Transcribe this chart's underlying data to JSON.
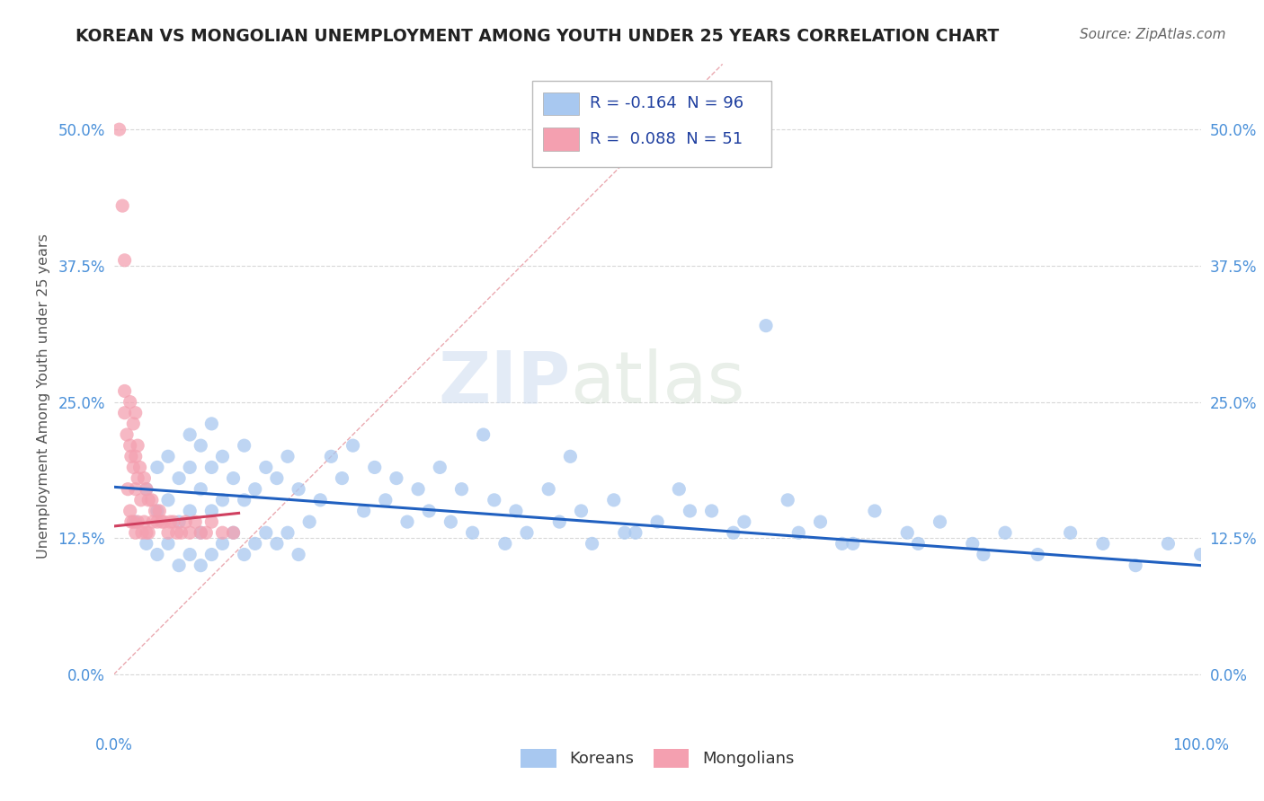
{
  "title": "KOREAN VS MONGOLIAN UNEMPLOYMENT AMONG YOUTH UNDER 25 YEARS CORRELATION CHART",
  "source": "Source: ZipAtlas.com",
  "ylabel": "Unemployment Among Youth under 25 years",
  "ytick_labels": [
    "0.0%",
    "12.5%",
    "25.0%",
    "37.5%",
    "50.0%"
  ],
  "ytick_values": [
    0.0,
    0.125,
    0.25,
    0.375,
    0.5
  ],
  "xlim": [
    0.0,
    1.0
  ],
  "ylim": [
    -0.05,
    0.56
  ],
  "korean_R": -0.164,
  "korean_N": 96,
  "mongolian_R": 0.088,
  "mongolian_N": 51,
  "korean_color": "#a8c8f0",
  "mongolian_color": "#f4a0b0",
  "korean_line_color": "#2060c0",
  "mongolian_line_color": "#d04060",
  "diag_color": "#e8a0a8",
  "background_color": "#ffffff",
  "title_color": "#222222",
  "title_fontsize": 13.5,
  "source_fontsize": 11,
  "tick_color": "#4a90d9",
  "legend_color": "#2040a0",
  "watermark_zip": "ZIP",
  "watermark_atlas": "atlas",
  "korean_scatter_x": [
    0.02,
    0.03,
    0.03,
    0.04,
    0.04,
    0.04,
    0.05,
    0.05,
    0.05,
    0.06,
    0.06,
    0.06,
    0.07,
    0.07,
    0.07,
    0.07,
    0.08,
    0.08,
    0.08,
    0.08,
    0.09,
    0.09,
    0.09,
    0.09,
    0.1,
    0.1,
    0.1,
    0.11,
    0.11,
    0.12,
    0.12,
    0.12,
    0.13,
    0.13,
    0.14,
    0.14,
    0.15,
    0.15,
    0.16,
    0.16,
    0.17,
    0.17,
    0.18,
    0.19,
    0.2,
    0.21,
    0.22,
    0.23,
    0.24,
    0.25,
    0.26,
    0.27,
    0.28,
    0.29,
    0.3,
    0.31,
    0.32,
    0.33,
    0.35,
    0.37,
    0.38,
    0.4,
    0.41,
    0.43,
    0.44,
    0.46,
    0.48,
    0.5,
    0.52,
    0.55,
    0.57,
    0.6,
    0.62,
    0.65,
    0.67,
    0.7,
    0.73,
    0.76,
    0.79,
    0.82,
    0.85,
    0.88,
    0.91,
    0.94,
    0.97,
    1.0,
    0.34,
    0.36,
    0.42,
    0.47,
    0.53,
    0.58,
    0.63,
    0.68,
    0.74,
    0.8
  ],
  "korean_scatter_y": [
    0.14,
    0.12,
    0.17,
    0.11,
    0.15,
    0.19,
    0.12,
    0.16,
    0.2,
    0.1,
    0.14,
    0.18,
    0.11,
    0.15,
    0.19,
    0.22,
    0.1,
    0.13,
    0.17,
    0.21,
    0.11,
    0.15,
    0.19,
    0.23,
    0.12,
    0.16,
    0.2,
    0.13,
    0.18,
    0.11,
    0.16,
    0.21,
    0.12,
    0.17,
    0.13,
    0.19,
    0.12,
    0.18,
    0.13,
    0.2,
    0.11,
    0.17,
    0.14,
    0.16,
    0.2,
    0.18,
    0.21,
    0.15,
    0.19,
    0.16,
    0.18,
    0.14,
    0.17,
    0.15,
    0.19,
    0.14,
    0.17,
    0.13,
    0.16,
    0.15,
    0.13,
    0.17,
    0.14,
    0.15,
    0.12,
    0.16,
    0.13,
    0.14,
    0.17,
    0.15,
    0.13,
    0.32,
    0.16,
    0.14,
    0.12,
    0.15,
    0.13,
    0.14,
    0.12,
    0.13,
    0.11,
    0.13,
    0.12,
    0.1,
    0.12,
    0.11,
    0.22,
    0.12,
    0.2,
    0.13,
    0.15,
    0.14,
    0.13,
    0.12,
    0.12,
    0.11
  ],
  "mongolian_scatter_x": [
    0.005,
    0.008,
    0.01,
    0.01,
    0.01,
    0.012,
    0.013,
    0.015,
    0.015,
    0.015,
    0.016,
    0.016,
    0.018,
    0.018,
    0.018,
    0.02,
    0.02,
    0.02,
    0.02,
    0.022,
    0.022,
    0.022,
    0.024,
    0.025,
    0.026,
    0.028,
    0.028,
    0.03,
    0.03,
    0.032,
    0.032,
    0.035,
    0.036,
    0.038,
    0.04,
    0.042,
    0.044,
    0.046,
    0.05,
    0.052,
    0.055,
    0.058,
    0.062,
    0.066,
    0.07,
    0.075,
    0.08,
    0.085,
    0.09,
    0.1,
    0.11
  ],
  "mongolian_scatter_y": [
    0.5,
    0.43,
    0.38,
    0.26,
    0.24,
    0.22,
    0.17,
    0.25,
    0.21,
    0.15,
    0.2,
    0.14,
    0.23,
    0.19,
    0.14,
    0.24,
    0.2,
    0.17,
    0.13,
    0.21,
    0.18,
    0.14,
    0.19,
    0.16,
    0.13,
    0.18,
    0.14,
    0.17,
    0.13,
    0.16,
    0.13,
    0.16,
    0.14,
    0.15,
    0.14,
    0.15,
    0.14,
    0.14,
    0.13,
    0.14,
    0.14,
    0.13,
    0.13,
    0.14,
    0.13,
    0.14,
    0.13,
    0.13,
    0.14,
    0.13,
    0.13
  ],
  "korean_line_x": [
    0.0,
    1.0
  ],
  "korean_line_y": [
    0.172,
    0.1
  ],
  "mongolian_line_x": [
    0.0,
    0.115
  ],
  "mongolian_line_y": [
    0.136,
    0.148
  ]
}
